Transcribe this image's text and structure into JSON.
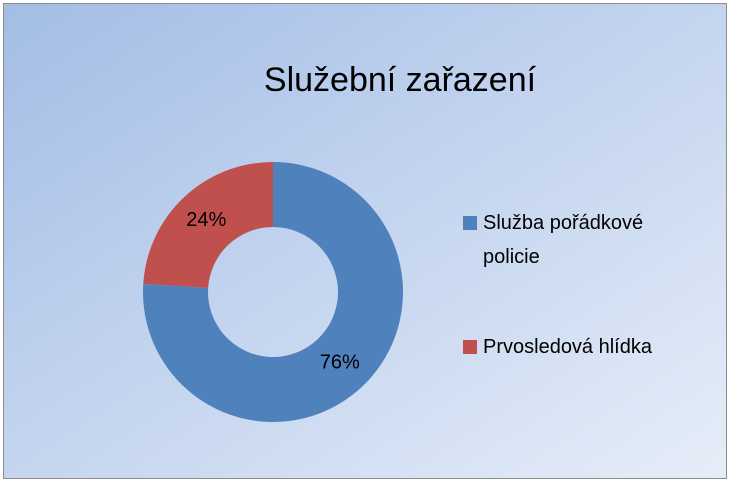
{
  "chart_data": {
    "type": "donut",
    "title": "Služební zařazení",
    "categories": [
      "Služba pořádkové policie",
      "Prvosledová hlídka"
    ],
    "values": [
      76,
      24
    ],
    "value_labels": [
      "76%",
      "24%"
    ],
    "colors": [
      "#4f81bd",
      "#c0504d"
    ],
    "legend": "right"
  }
}
